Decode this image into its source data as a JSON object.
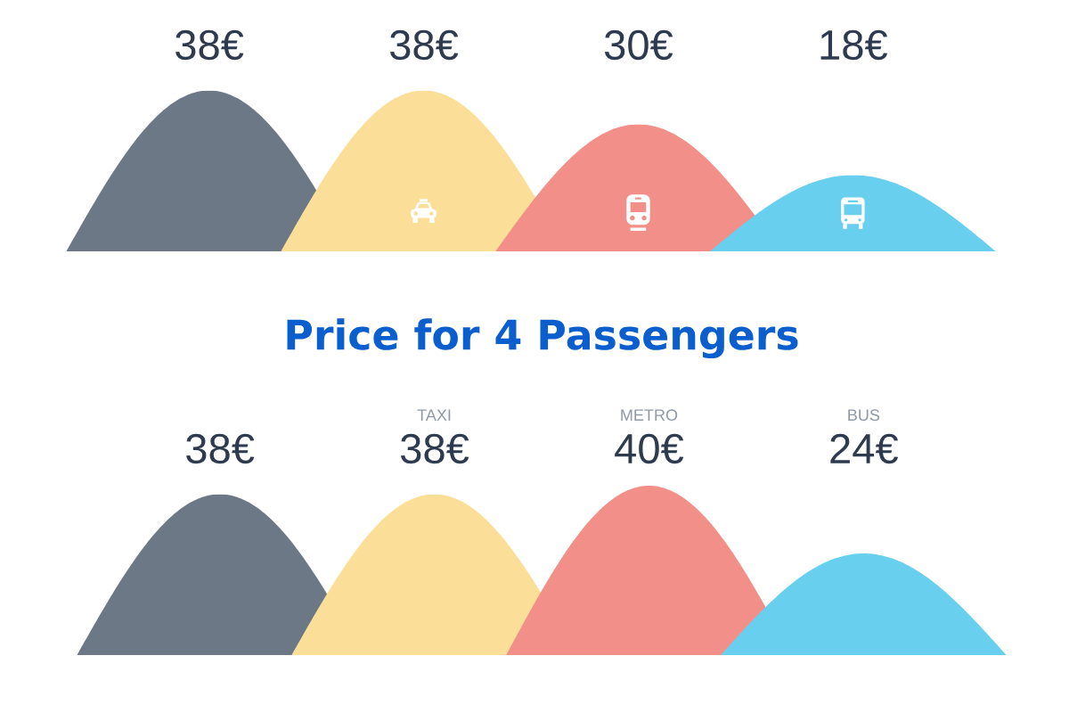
{
  "chart_data": [
    {
      "type": "bar",
      "categories": [
        null,
        null,
        null,
        null
      ],
      "values": [
        38,
        38,
        30,
        18
      ],
      "colors": [
        "#6d7887",
        "#fbdf98",
        "#f28f88",
        "#68cfee"
      ],
      "value_labels": [
        "38€",
        "38€",
        "30€",
        "18€"
      ],
      "tick_labels": false
    },
    {
      "type": "bar",
      "title": "Price for 4 Passengers",
      "categories": [
        null,
        "TAXI",
        "METRO",
        "BUS"
      ],
      "values": [
        38,
        38,
        40,
        24
      ],
      "colors": [
        "#6d7887",
        "#fbdf98",
        "#f28f88",
        "#68cfee"
      ],
      "value_labels": [
        "38€",
        "38€",
        "40€",
        "24€"
      ],
      "tick_labels": false
    }
  ]
}
